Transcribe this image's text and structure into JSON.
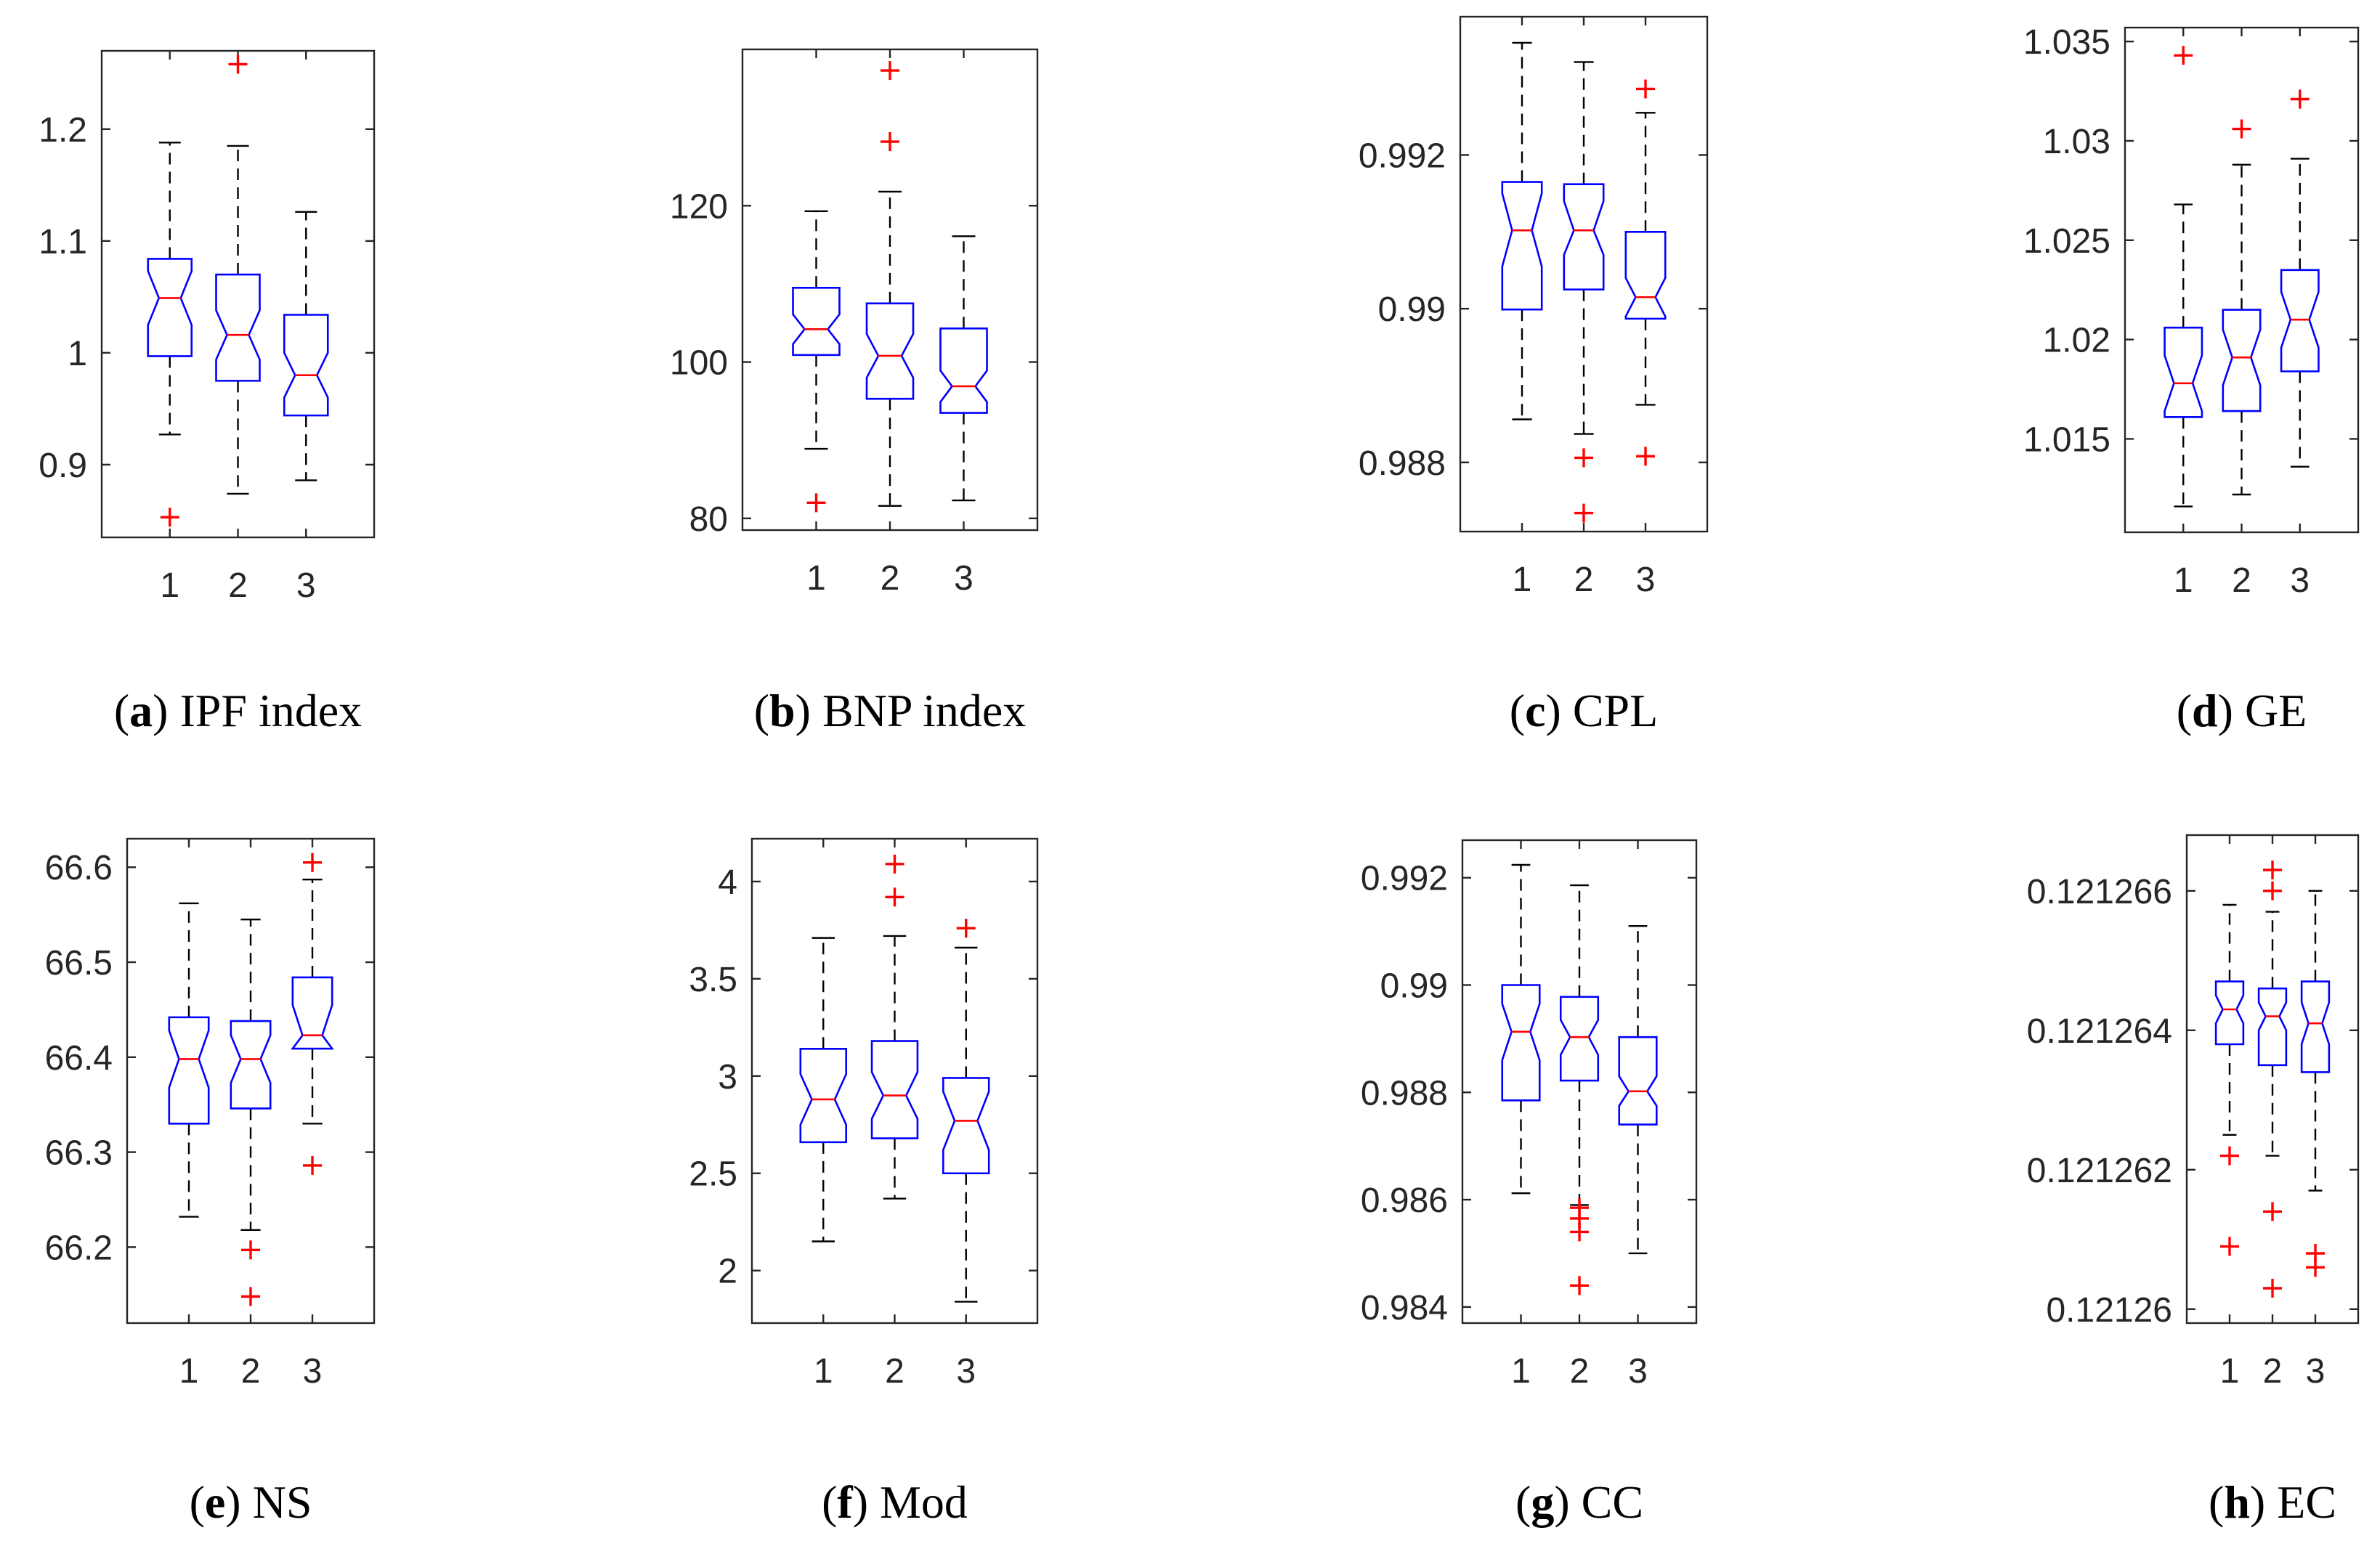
{
  "chart_data": [
    {
      "type": "boxplot",
      "notched": true,
      "caption": {
        "letter": "a",
        "title": "IPF index"
      },
      "categories": [
        "1",
        "2",
        "3"
      ],
      "ylim": [
        0.835,
        1.27
      ],
      "yticks": [
        0.9,
        1,
        1.1,
        1.2
      ],
      "ytick_labels": [
        "0.9",
        "1",
        "1.1",
        "1.2"
      ],
      "boxes": [
        {
          "category": "1",
          "whisker_low": 0.927,
          "q1": 0.997,
          "median": 1.049,
          "q3": 1.084,
          "whisker_high": 1.188,
          "notch": [
            1.025,
            1.073
          ],
          "outliers": [
            0.853
          ]
        },
        {
          "category": "2",
          "whisker_low": 0.874,
          "q1": 0.975,
          "median": 1.016,
          "q3": 1.07,
          "whisker_high": 1.185,
          "notch": [
            0.994,
            1.038
          ],
          "outliers": [
            1.258
          ]
        },
        {
          "category": "3",
          "whisker_low": 0.886,
          "q1": 0.944,
          "median": 0.98,
          "q3": 1.034,
          "whisker_high": 1.126,
          "notch": [
            0.96,
            1.0
          ],
          "outliers": []
        }
      ]
    },
    {
      "type": "boxplot",
      "notched": true,
      "caption": {
        "letter": "b",
        "title": "BNP index"
      },
      "categories": [
        "1",
        "2",
        "3"
      ],
      "ylim": [
        78.5,
        140
      ],
      "yticks": [
        80,
        100,
        120
      ],
      "ytick_labels": [
        "80",
        "100",
        "120"
      ],
      "boxes": [
        {
          "category": "1",
          "whisker_low": 88.9,
          "q1": 100.9,
          "median": 104.2,
          "q3": 109.5,
          "whisker_high": 119.3,
          "notch": [
            102.3,
            106.1
          ],
          "outliers": [
            82.0
          ]
        },
        {
          "category": "2",
          "whisker_low": 81.6,
          "q1": 95.3,
          "median": 100.8,
          "q3": 107.5,
          "whisker_high": 121.8,
          "notch": [
            98.0,
            103.6
          ],
          "outliers": [
            128.2,
            137.3
          ]
        },
        {
          "category": "3",
          "whisker_low": 82.3,
          "q1": 93.5,
          "median": 96.9,
          "q3": 104.3,
          "whisker_high": 116.1,
          "notch": [
            94.9,
            98.9
          ],
          "outliers": []
        }
      ]
    },
    {
      "type": "boxplot",
      "notched": true,
      "caption": {
        "letter": "c",
        "title": "CPL"
      },
      "categories": [
        "1",
        "2",
        "3"
      ],
      "ylim": [
        0.9871,
        0.9938
      ],
      "yticks": [
        0.988,
        0.99,
        0.992
      ],
      "ytick_labels": [
        "0.988",
        "0.99",
        "0.992"
      ],
      "boxes": [
        {
          "category": "1",
          "whisker_low": 0.98856,
          "q1": 0.98999,
          "median": 0.99102,
          "q3": 0.99165,
          "whisker_high": 0.99346,
          "notch": [
            0.99055,
            0.9915
          ],
          "outliers": []
        },
        {
          "category": "2",
          "whisker_low": 0.98837,
          "q1": 0.99025,
          "median": 0.99102,
          "q3": 0.99162,
          "whisker_high": 0.99321,
          "notch": [
            0.9907,
            0.9914
          ],
          "outliers": [
            0.98806,
            0.98734
          ]
        },
        {
          "category": "3",
          "whisker_low": 0.98875,
          "q1": 0.98987,
          "median": 0.99015,
          "q3": 0.991,
          "whisker_high": 0.99255,
          "notch": [
            0.9899,
            0.9904
          ],
          "outliers": [
            0.99286,
            0.98808
          ]
        }
      ]
    },
    {
      "type": "boxplot",
      "notched": true,
      "caption": {
        "letter": "d",
        "title": "GE"
      },
      "categories": [
        "1",
        "2",
        "3"
      ],
      "ylim": [
        1.0103,
        1.0357
      ],
      "yticks": [
        1.015,
        1.02,
        1.025,
        1.03,
        1.035
      ],
      "ytick_labels": [
        "1.015",
        "1.02",
        "1.025",
        "1.03",
        "1.035"
      ],
      "boxes": [
        {
          "category": "1",
          "whisker_low": 1.0116,
          "q1": 1.0161,
          "median": 1.0178,
          "q3": 1.0206,
          "whisker_high": 1.0268,
          "notch": [
            1.0164,
            1.0192
          ],
          "outliers": [
            1.0343
          ]
        },
        {
          "category": "2",
          "whisker_low": 1.0122,
          "q1": 1.0164,
          "median": 1.0191,
          "q3": 1.0215,
          "whisker_high": 1.0288,
          "notch": [
            1.0177,
            1.0205
          ],
          "outliers": [
            1.0306
          ]
        },
        {
          "category": "3",
          "whisker_low": 1.0136,
          "q1": 1.0184,
          "median": 1.021,
          "q3": 1.0235,
          "whisker_high": 1.0291,
          "notch": [
            1.0196,
            1.0224
          ],
          "outliers": [
            1.0321
          ]
        }
      ]
    },
    {
      "type": "boxplot",
      "notched": true,
      "caption": {
        "letter": "e",
        "title": "NS"
      },
      "categories": [
        "1",
        "2",
        "3"
      ],
      "ylim": [
        66.12,
        66.63
      ],
      "yticks": [
        66.2,
        66.3,
        66.4,
        66.5,
        66.6
      ],
      "ytick_labels": [
        "66.2",
        "66.3",
        "66.4",
        "66.5",
        "66.6"
      ],
      "boxes": [
        {
          "category": "1",
          "whisker_low": 66.232,
          "q1": 66.33,
          "median": 66.398,
          "q3": 66.442,
          "whisker_high": 66.562,
          "notch": [
            66.368,
            66.428
          ],
          "outliers": []
        },
        {
          "category": "2",
          "whisker_low": 66.218,
          "q1": 66.346,
          "median": 66.398,
          "q3": 66.438,
          "whisker_high": 66.545,
          "notch": [
            66.373,
            66.423
          ],
          "outliers": [
            66.197,
            66.148
          ]
        },
        {
          "category": "3",
          "whisker_low": 66.33,
          "q1": 66.409,
          "median": 66.423,
          "q3": 66.484,
          "whisker_high": 66.587,
          "notch": [
            66.409,
            66.455
          ],
          "outliers": [
            66.605,
            66.286
          ]
        }
      ]
    },
    {
      "type": "boxplot",
      "notched": true,
      "caption": {
        "letter": "f",
        "title": "Mod"
      },
      "categories": [
        "1",
        "2",
        "3"
      ],
      "ylim": [
        1.73,
        4.22
      ],
      "yticks": [
        2,
        2.5,
        3,
        3.5,
        4
      ],
      "ytick_labels": [
        "2",
        "2.5",
        "3",
        "3.5",
        "4"
      ],
      "boxes": [
        {
          "category": "1",
          "whisker_low": 2.15,
          "q1": 2.66,
          "median": 2.88,
          "q3": 3.14,
          "whisker_high": 3.71,
          "notch": [
            2.75,
            3.01
          ],
          "outliers": []
        },
        {
          "category": "2",
          "whisker_low": 2.37,
          "q1": 2.68,
          "median": 2.9,
          "q3": 3.18,
          "whisker_high": 3.72,
          "notch": [
            2.78,
            3.02
          ],
          "outliers": [
            3.92,
            4.09
          ]
        },
        {
          "category": "3",
          "whisker_low": 1.84,
          "q1": 2.5,
          "median": 2.77,
          "q3": 2.99,
          "whisker_high": 3.66,
          "notch": [
            2.62,
            2.92
          ],
          "outliers": [
            3.76
          ]
        }
      ]
    },
    {
      "type": "boxplot",
      "notched": true,
      "caption": {
        "letter": "g",
        "title": "CC"
      },
      "categories": [
        "1",
        "2",
        "3"
      ],
      "ylim": [
        0.9837,
        0.9927
      ],
      "yticks": [
        0.984,
        0.986,
        0.988,
        0.99,
        0.992
      ],
      "ytick_labels": [
        "0.984",
        "0.986",
        "0.988",
        "0.99",
        "0.992"
      ],
      "boxes": [
        {
          "category": "1",
          "whisker_low": 0.98612,
          "q1": 0.98785,
          "median": 0.98913,
          "q3": 0.99,
          "whisker_high": 0.99224,
          "notch": [
            0.9886,
            0.98965
          ],
          "outliers": []
        },
        {
          "category": "2",
          "whisker_low": 0.9859,
          "q1": 0.98822,
          "median": 0.98903,
          "q3": 0.98978,
          "whisker_high": 0.99186,
          "notch": [
            0.9887,
            0.98935
          ],
          "outliers": [
            0.98585,
            0.98565,
            0.9854,
            0.9844
          ]
        },
        {
          "category": "3",
          "whisker_low": 0.985,
          "q1": 0.9874,
          "median": 0.98802,
          "q3": 0.98903,
          "whisker_high": 0.9911,
          "notch": [
            0.98775,
            0.9883
          ],
          "outliers": []
        }
      ]
    },
    {
      "type": "boxplot",
      "notched": true,
      "caption": {
        "letter": "h",
        "title": "EC"
      },
      "categories": [
        "1",
        "2",
        "3"
      ],
      "ylim": [
        0.1212598,
        0.1212668
      ],
      "yticks": [
        0.12126,
        0.121262,
        0.121264,
        0.121266
      ],
      "ytick_labels": [
        "0.12126",
        "0.121262",
        "0.121264",
        "0.121266"
      ],
      "boxes": [
        {
          "category": "1",
          "whisker_low": 0.1212625,
          "q1": 0.1212638,
          "median": 0.1212643,
          "q3": 0.1212647,
          "whisker_high": 0.1212658,
          "notch": [
            0.1212641,
            0.1212645
          ],
          "outliers": [
            0.1212622,
            0.1212609
          ]
        },
        {
          "category": "2",
          "whisker_low": 0.1212622,
          "q1": 0.1212635,
          "median": 0.1212642,
          "q3": 0.1212646,
          "whisker_high": 0.1212657,
          "notch": [
            0.121264,
            0.1212644
          ],
          "outliers": [
            0.1212663,
            0.121266,
            0.1212614,
            0.1212603
          ]
        },
        {
          "category": "3",
          "whisker_low": 0.1212617,
          "q1": 0.1212634,
          "median": 0.1212641,
          "q3": 0.1212647,
          "whisker_high": 0.121266,
          "notch": [
            0.1212638,
            0.1212644
          ],
          "outliers": [
            0.1212608,
            0.1212606
          ]
        }
      ]
    }
  ]
}
